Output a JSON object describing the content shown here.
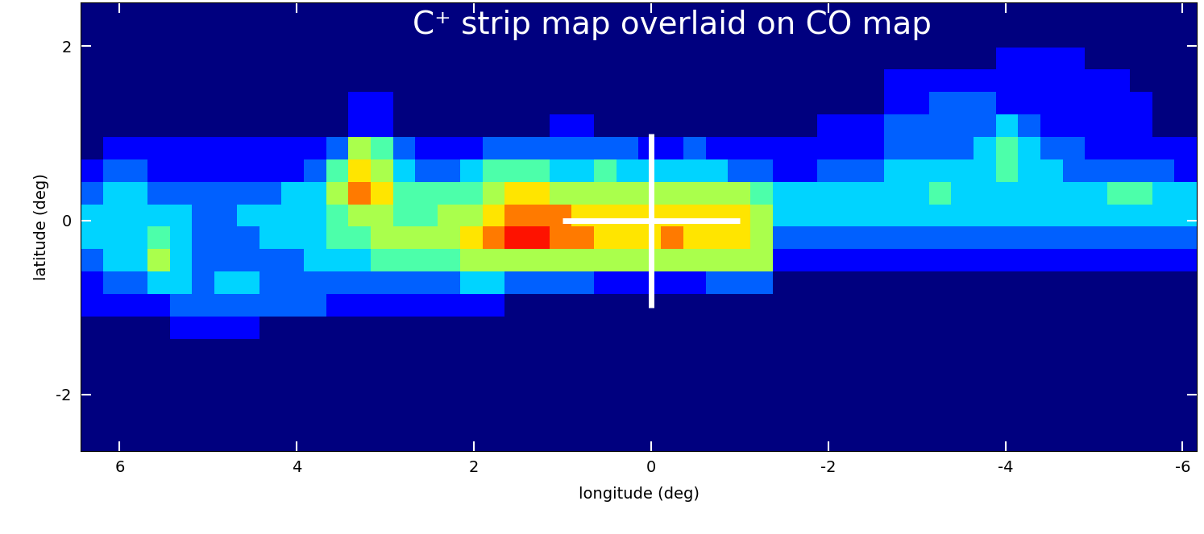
{
  "chart_data": {
    "type": "heatmap",
    "title": "C⁺ strip map overlaid on CO map",
    "x_label": "longitude (deg)",
    "y_label": "latitude (deg)",
    "xlim": [
      6.44,
      -6.16
    ],
    "ylim": [
      -2.65,
      2.5
    ],
    "xticks": [
      6,
      4,
      2,
      0,
      -2,
      -4,
      -6
    ],
    "yticks": [
      -2,
      0,
      2
    ],
    "color_range": [
      1,
      10
    ],
    "cells": [
      [
        1,
        1,
        1,
        1,
        1,
        1,
        1,
        1,
        1,
        1,
        1,
        1,
        1,
        1,
        1,
        1,
        1,
        1,
        1,
        1,
        1,
        1,
        1,
        1,
        1,
        1,
        1,
        1,
        1,
        1,
        1,
        1,
        1,
        1,
        1,
        1,
        1,
        1,
        1,
        1,
        1,
        1,
        1,
        1,
        1,
        1,
        1,
        1,
        1,
        1
      ],
      [
        1,
        1,
        1,
        1,
        1,
        1,
        1,
        1,
        1,
        1,
        1,
        1,
        1,
        1,
        1,
        1,
        1,
        1,
        1,
        1,
        1,
        1,
        1,
        1,
        1,
        1,
        1,
        1,
        1,
        1,
        1,
        1,
        1,
        1,
        1,
        1,
        1,
        1,
        1,
        1,
        1,
        1,
        1,
        1,
        1,
        1,
        1,
        1,
        1,
        1
      ],
      [
        1,
        1,
        1,
        1,
        1,
        1,
        1,
        1,
        1,
        1,
        1,
        1,
        1,
        1,
        1,
        1,
        1,
        1,
        1,
        1,
        1,
        1,
        1,
        1,
        1,
        1,
        1,
        1,
        1,
        1,
        1,
        1,
        1,
        1,
        1,
        1,
        1,
        1,
        1,
        1,
        1,
        2,
        2,
        2,
        2,
        1,
        1,
        1,
        1,
        1
      ],
      [
        1,
        1,
        1,
        1,
        1,
        1,
        1,
        1,
        1,
        1,
        1,
        1,
        1,
        1,
        1,
        1,
        1,
        1,
        1,
        1,
        1,
        1,
        1,
        1,
        1,
        1,
        1,
        1,
        1,
        1,
        1,
        1,
        1,
        1,
        1,
        1,
        2,
        2,
        2,
        2,
        2,
        2,
        2,
        2,
        2,
        2,
        2,
        1,
        1,
        1
      ],
      [
        1,
        1,
        1,
        1,
        1,
        1,
        1,
        1,
        1,
        1,
        1,
        1,
        2,
        2,
        1,
        1,
        1,
        1,
        1,
        1,
        1,
        1,
        1,
        1,
        1,
        1,
        1,
        1,
        1,
        1,
        1,
        1,
        1,
        1,
        1,
        1,
        2,
        2,
        3,
        3,
        3,
        2,
        2,
        2,
        2,
        2,
        2,
        2,
        1,
        1
      ],
      [
        1,
        1,
        1,
        1,
        1,
        1,
        1,
        1,
        1,
        1,
        1,
        1,
        2,
        2,
        1,
        1,
        1,
        1,
        1,
        1,
        1,
        2,
        2,
        1,
        1,
        1,
        1,
        1,
        1,
        1,
        1,
        1,
        1,
        2,
        2,
        2,
        3,
        3,
        3,
        3,
        3,
        4,
        3,
        2,
        2,
        2,
        2,
        2,
        1,
        1
      ],
      [
        1,
        2,
        2,
        2,
        2,
        2,
        2,
        2,
        2,
        2,
        2,
        3,
        6,
        5,
        3,
        2,
        2,
        2,
        3,
        3,
        3,
        3,
        3,
        3,
        3,
        2,
        2,
        3,
        2,
        2,
        2,
        2,
        2,
        2,
        2,
        2,
        3,
        3,
        3,
        3,
        4,
        5,
        4,
        3,
        3,
        2,
        2,
        2,
        2,
        2
      ],
      [
        2,
        3,
        3,
        2,
        2,
        2,
        2,
        2,
        2,
        2,
        3,
        5,
        7,
        6,
        4,
        3,
        3,
        4,
        5,
        5,
        5,
        4,
        4,
        5,
        4,
        4,
        4,
        4,
        4,
        3,
        3,
        2,
        2,
        3,
        3,
        3,
        4,
        4,
        4,
        4,
        4,
        5,
        4,
        4,
        3,
        3,
        3,
        3,
        3,
        2
      ],
      [
        3,
        4,
        4,
        3,
        3,
        3,
        3,
        3,
        3,
        4,
        4,
        6,
        8,
        7,
        5,
        5,
        5,
        5,
        6,
        7,
        7,
        6,
        6,
        6,
        6,
        6,
        6,
        6,
        6,
        6,
        5,
        4,
        4,
        4,
        4,
        4,
        4,
        4,
        5,
        4,
        4,
        4,
        4,
        4,
        4,
        4,
        5,
        5,
        4,
        4
      ],
      [
        4,
        4,
        4,
        4,
        4,
        3,
        3,
        4,
        4,
        4,
        4,
        5,
        6,
        6,
        5,
        5,
        6,
        6,
        7,
        8,
        8,
        8,
        7,
        7,
        7,
        7,
        7,
        7,
        7,
        7,
        6,
        4,
        4,
        4,
        4,
        4,
        4,
        4,
        4,
        4,
        4,
        4,
        4,
        4,
        4,
        4,
        4,
        4,
        4,
        4
      ],
      [
        4,
        4,
        4,
        5,
        4,
        3,
        3,
        3,
        4,
        4,
        4,
        5,
        5,
        6,
        6,
        6,
        6,
        7,
        8,
        9,
        9,
        8,
        8,
        7,
        7,
        7,
        8,
        7,
        7,
        7,
        6,
        3,
        3,
        3,
        3,
        3,
        3,
        3,
        3,
        3,
        3,
        3,
        3,
        3,
        3,
        3,
        3,
        3,
        3,
        3
      ],
      [
        3,
        4,
        4,
        6,
        4,
        3,
        3,
        3,
        3,
        3,
        4,
        4,
        4,
        5,
        5,
        5,
        5,
        6,
        6,
        6,
        6,
        6,
        6,
        6,
        6,
        6,
        6,
        6,
        6,
        6,
        6,
        2,
        2,
        2,
        2,
        2,
        2,
        2,
        2,
        2,
        2,
        2,
        2,
        2,
        2,
        2,
        2,
        2,
        2,
        2
      ],
      [
        2,
        3,
        3,
        4,
        4,
        3,
        4,
        4,
        3,
        3,
        3,
        3,
        3,
        3,
        3,
        3,
        3,
        4,
        4,
        3,
        3,
        3,
        3,
        2,
        2,
        2,
        2,
        2,
        3,
        3,
        3,
        1,
        1,
        1,
        1,
        1,
        1,
        1,
        1,
        1,
        1,
        1,
        1,
        1,
        1,
        1,
        1,
        1,
        1,
        1
      ],
      [
        2,
        2,
        2,
        2,
        3,
        3,
        3,
        3,
        3,
        3,
        3,
        2,
        2,
        2,
        2,
        2,
        2,
        2,
        2,
        1,
        1,
        1,
        1,
        1,
        1,
        1,
        1,
        1,
        1,
        1,
        1,
        1,
        1,
        1,
        1,
        1,
        1,
        1,
        1,
        1,
        1,
        1,
        1,
        1,
        1,
        1,
        1,
        1,
        1,
        1
      ],
      [
        1,
        1,
        1,
        1,
        2,
        2,
        2,
        2,
        1,
        1,
        1,
        1,
        1,
        1,
        1,
        1,
        1,
        1,
        1,
        1,
        1,
        1,
        1,
        1,
        1,
        1,
        1,
        1,
        1,
        1,
        1,
        1,
        1,
        1,
        1,
        1,
        1,
        1,
        1,
        1,
        1,
        1,
        1,
        1,
        1,
        1,
        1,
        1,
        1,
        1
      ],
      [
        1,
        1,
        1,
        1,
        1,
        1,
        1,
        1,
        1,
        1,
        1,
        1,
        1,
        1,
        1,
        1,
        1,
        1,
        1,
        1,
        1,
        1,
        1,
        1,
        1,
        1,
        1,
        1,
        1,
        1,
        1,
        1,
        1,
        1,
        1,
        1,
        1,
        1,
        1,
        1,
        1,
        1,
        1,
        1,
        1,
        1,
        1,
        1,
        1,
        1
      ],
      [
        1,
        1,
        1,
        1,
        1,
        1,
        1,
        1,
        1,
        1,
        1,
        1,
        1,
        1,
        1,
        1,
        1,
        1,
        1,
        1,
        1,
        1,
        1,
        1,
        1,
        1,
        1,
        1,
        1,
        1,
        1,
        1,
        1,
        1,
        1,
        1,
        1,
        1,
        1,
        1,
        1,
        1,
        1,
        1,
        1,
        1,
        1,
        1,
        1,
        1
      ],
      [
        1,
        1,
        1,
        1,
        1,
        1,
        1,
        1,
        1,
        1,
        1,
        1,
        1,
        1,
        1,
        1,
        1,
        1,
        1,
        1,
        1,
        1,
        1,
        1,
        1,
        1,
        1,
        1,
        1,
        1,
        1,
        1,
        1,
        1,
        1,
        1,
        1,
        1,
        1,
        1,
        1,
        1,
        1,
        1,
        1,
        1,
        1,
        1,
        1,
        1
      ],
      [
        1,
        1,
        1,
        1,
        1,
        1,
        1,
        1,
        1,
        1,
        1,
        1,
        1,
        1,
        1,
        1,
        1,
        1,
        1,
        1,
        1,
        1,
        1,
        1,
        1,
        1,
        1,
        1,
        1,
        1,
        1,
        1,
        1,
        1,
        1,
        1,
        1,
        1,
        1,
        1,
        1,
        1,
        1,
        1,
        1,
        1,
        1,
        1,
        1,
        1
      ],
      [
        1,
        1,
        1,
        1,
        1,
        1,
        1,
        1,
        1,
        1,
        1,
        1,
        1,
        1,
        1,
        1,
        1,
        1,
        1,
        1,
        1,
        1,
        1,
        1,
        1,
        1,
        1,
        1,
        1,
        1,
        1,
        1,
        1,
        1,
        1,
        1,
        1,
        1,
        1,
        1,
        1,
        1,
        1,
        1,
        1,
        1,
        1,
        1,
        1,
        1
      ]
    ],
    "strips": [
      {
        "x": [
          1,
          -1
        ],
        "y": [
          0,
          0
        ]
      },
      {
        "x": [
          0,
          0
        ],
        "y": [
          1,
          -1
        ]
      }
    ],
    "color": "#ffffff"
  }
}
